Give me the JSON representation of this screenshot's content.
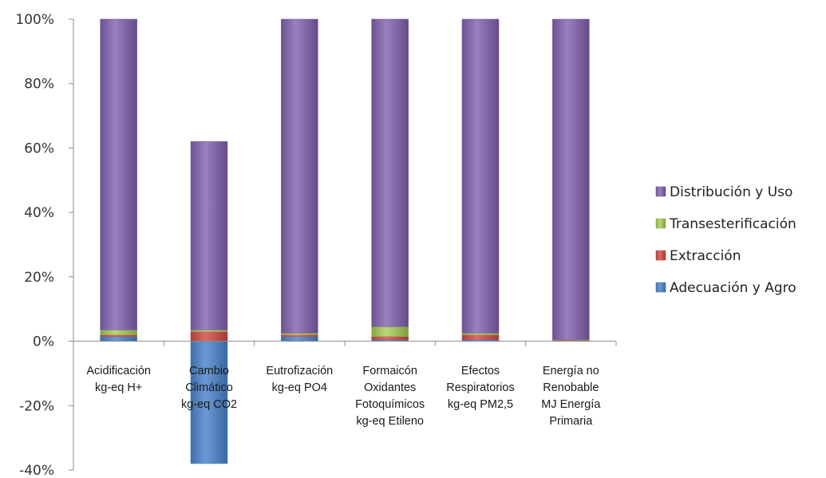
{
  "chart_data": {
    "type": "bar",
    "stacked": true,
    "title": "",
    "xlabel": "",
    "ylabel": "",
    "ylim": [
      -40,
      100
    ],
    "y_ticks": [
      "100%",
      "80%",
      "60%",
      "40%",
      "20%",
      "0%",
      "-20%",
      "-40%"
    ],
    "categories": [
      [
        "Acidificación",
        "kg-eq  H+"
      ],
      [
        "Cambio",
        "Climático",
        "kg-eq CO2"
      ],
      [
        "Eutrofización",
        "kg-eq  PO4"
      ],
      [
        "Formaicón",
        "Oxidantes",
        "Fotoquímicos",
        "kg-eq Etileno"
      ],
      [
        "Efectos",
        "Respiratorios",
        "kg-eq PM2,5"
      ],
      [
        "Energía no",
        "Renobable",
        "MJ Energía",
        "Primaria"
      ]
    ],
    "series": [
      {
        "name": "Adecuación y Agro",
        "color": "#4f81bd",
        "values": [
          1.5,
          -38,
          1.5,
          0.5,
          0.5,
          0.2
        ]
      },
      {
        "name": "Extracción",
        "color": "#c0504d",
        "values": [
          0.5,
          3,
          0.5,
          1,
          1.5,
          0.2
        ]
      },
      {
        "name": "Transesterificación",
        "color": "#9bbb59",
        "values": [
          1.5,
          0.5,
          0.5,
          3,
          0.5,
          0.1
        ]
      },
      {
        "name": "Distribución y Uso",
        "color": "#8064a2",
        "values": [
          96.5,
          58.5,
          97.5,
          95.5,
          97.5,
          99.5
        ]
      }
    ],
    "legend_position": "right",
    "grid": false
  }
}
